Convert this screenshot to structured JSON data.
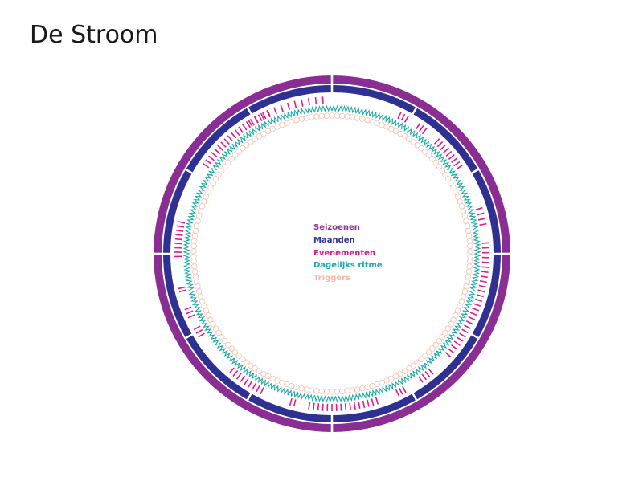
{
  "page": {
    "title": "De Stroom"
  },
  "legend": {
    "seasons": "Seizoenen",
    "months": "Maanden",
    "events": "Evenementen",
    "daily": "Dagelijks ritme",
    "triggers": "Triggers"
  },
  "colors": {
    "seasons": "#8a2e93",
    "months": "#2e3192",
    "events": "#e2198a",
    "daily": "#1aaca6",
    "triggers": "#f6b9a4"
  },
  "rings": {
    "season_count": 4,
    "month_count": 12
  }
}
